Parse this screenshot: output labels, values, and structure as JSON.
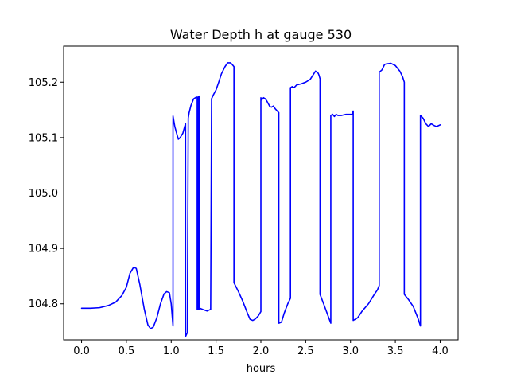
{
  "chart_data": {
    "type": "line",
    "title": "Water Depth h at gauge 530",
    "xlabel": "hours",
    "ylabel": "",
    "xlim": [
      -0.2,
      4.2
    ],
    "ylim": [
      104.735,
      105.265
    ],
    "grid": false,
    "x_ticks": [
      0.0,
      0.5,
      1.0,
      1.5,
      2.0,
      2.5,
      3.0,
      3.5,
      4.0
    ],
    "x_tick_labels": [
      "0.0",
      "0.5",
      "1.0",
      "1.5",
      "2.0",
      "2.5",
      "3.0",
      "3.5",
      "4.0"
    ],
    "y_ticks": [
      104.8,
      104.9,
      105.0,
      105.1,
      105.2
    ],
    "y_tick_labels": [
      "104.8",
      "104.9",
      "105.0",
      "105.1",
      "105.2"
    ],
    "series": [
      {
        "color": "#0000ff",
        "x": [
          0.0,
          0.1,
          0.2,
          0.3,
          0.38,
          0.45,
          0.5,
          0.54,
          0.58,
          0.61,
          0.65,
          0.7,
          0.74,
          0.77,
          0.8,
          0.84,
          0.88,
          0.92,
          0.95,
          0.98,
          1.0,
          1.02,
          1.02,
          1.04,
          1.06,
          1.08,
          1.1,
          1.13,
          1.15,
          1.16,
          1.16,
          1.18,
          1.19,
          1.2,
          1.22,
          1.25,
          1.28,
          1.29,
          1.29,
          1.3,
          1.3,
          1.31,
          1.31,
          1.32,
          1.32,
          1.35,
          1.4,
          1.44,
          1.45,
          1.45,
          1.47,
          1.5,
          1.53,
          1.56,
          1.6,
          1.63,
          1.66,
          1.68,
          1.7,
          1.7,
          1.75,
          1.8,
          1.85,
          1.88,
          1.91,
          1.94,
          1.97,
          2.0,
          2.0,
          2.01,
          2.03,
          2.05,
          2.07,
          2.1,
          2.12,
          2.14,
          2.16,
          2.2,
          2.2,
          2.23,
          2.26,
          2.3,
          2.33,
          2.33,
          2.35,
          2.37,
          2.4,
          2.45,
          2.5,
          2.55,
          2.59,
          2.61,
          2.64,
          2.65,
          2.66,
          2.66,
          2.7,
          2.75,
          2.78,
          2.78,
          2.8,
          2.82,
          2.84,
          2.86,
          2.9,
          2.95,
          3.02,
          3.03,
          3.03,
          3.08,
          3.13,
          3.2,
          3.27,
          3.3,
          3.32,
          3.32,
          3.35,
          3.38,
          3.4,
          3.45,
          3.5,
          3.55,
          3.58,
          3.6,
          3.6,
          3.65,
          3.7,
          3.75,
          3.78,
          3.78,
          3.81,
          3.84,
          3.87,
          3.9,
          3.93,
          3.96,
          4.0
        ],
        "y": [
          104.792,
          104.792,
          104.793,
          104.797,
          104.803,
          104.815,
          104.83,
          104.855,
          104.866,
          104.864,
          104.835,
          104.79,
          104.762,
          104.755,
          104.758,
          104.775,
          104.8,
          104.818,
          104.822,
          104.82,
          104.8,
          104.76,
          105.139,
          105.12,
          105.108,
          105.097,
          105.1,
          105.108,
          105.12,
          105.125,
          104.741,
          104.748,
          105.135,
          105.145,
          105.158,
          105.17,
          105.173,
          105.173,
          104.79,
          104.79,
          105.173,
          105.175,
          104.79,
          104.79,
          104.792,
          104.79,
          104.787,
          104.79,
          105.165,
          105.17,
          105.177,
          105.186,
          105.2,
          105.215,
          105.228,
          105.235,
          105.235,
          105.232,
          105.228,
          104.838,
          104.822,
          104.804,
          104.783,
          104.772,
          104.77,
          104.773,
          104.778,
          104.786,
          105.172,
          105.168,
          105.172,
          105.17,
          105.165,
          105.156,
          105.155,
          105.157,
          105.152,
          105.145,
          104.765,
          104.767,
          104.783,
          104.8,
          104.81,
          105.19,
          105.192,
          105.19,
          105.195,
          105.197,
          105.2,
          105.205,
          105.215,
          105.22,
          105.216,
          105.212,
          105.206,
          104.817,
          104.8,
          104.778,
          104.765,
          105.14,
          105.142,
          105.138,
          105.142,
          105.14,
          105.14,
          105.142,
          105.142,
          105.148,
          104.77,
          104.775,
          104.787,
          104.8,
          104.818,
          104.825,
          104.833,
          105.218,
          105.222,
          105.232,
          105.233,
          105.234,
          105.23,
          105.22,
          105.21,
          105.2,
          104.817,
          104.807,
          104.795,
          104.775,
          104.76,
          105.14,
          105.135,
          105.125,
          105.12,
          105.125,
          105.122,
          105.12,
          105.123
        ]
      }
    ]
  }
}
